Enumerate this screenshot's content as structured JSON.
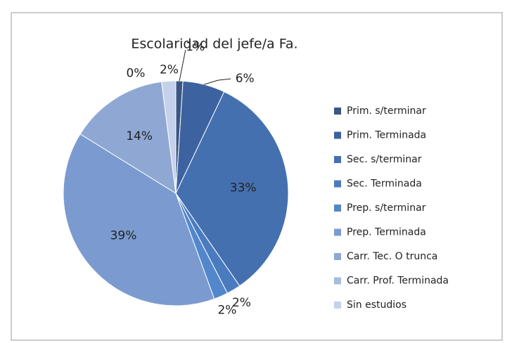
{
  "chart_data": {
    "type": "pie",
    "title": "Escolaridad del jefe/a Fa.",
    "categories": [
      "Prim. s/terminar",
      "Prim. Terminada",
      "Sec. s/terminar",
      "Sec. Terminada",
      "Prep. s/terminar",
      "Prep. Terminada",
      "Carr. Tec. O trunca",
      "Carr. Prof. Terminada",
      "Sin estudios"
    ],
    "values": [
      1,
      6,
      33,
      2,
      2,
      39,
      14,
      0,
      2
    ],
    "value_labels": [
      "1%",
      "6%",
      "33%",
      "2%",
      "2%",
      "39%",
      "14%",
      "0%",
      "2%"
    ],
    "colors": [
      "#3a5683",
      "#3d62a0",
      "#4470b0",
      "#4a7bbf",
      "#5287cc",
      "#7b9bd0",
      "#8fa8d3",
      "#a8bcdf",
      "#c5d1ea"
    ],
    "legend": "right"
  }
}
